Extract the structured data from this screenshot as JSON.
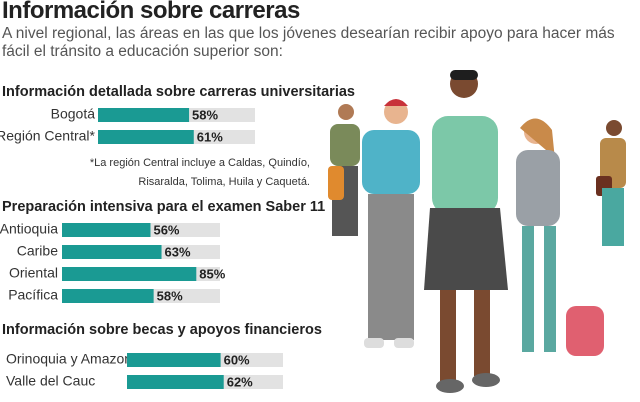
{
  "title": "Información sobre carreras",
  "subtitle": "A nivel regional, las áreas en las que los jóvenes desearían recibir apoyo para hacer más fácil el tránsito a educación superior son:",
  "chart_data": [
    {
      "type": "bar",
      "orientation": "horizontal",
      "title": "Información detallada sobre carreras universitarias",
      "categories": [
        "Bogotá",
        "Región Central*"
      ],
      "values": [
        58,
        61
      ],
      "value_labels": [
        "58%",
        "61%"
      ],
      "color": "#1a9a93",
      "track_color": "#e2e2e2",
      "xlim": [
        0,
        100
      ],
      "note": [
        "*La región Central incluye a Caldas, Quindío,",
        "Risaralda, Tolima, Huila y Caquetá."
      ]
    },
    {
      "type": "bar",
      "orientation": "horizontal",
      "title": "Preparación intensiva para el examen Saber 11",
      "categories": [
        "Antioquia",
        "Caribe",
        "Oriental",
        "Pacífica"
      ],
      "values": [
        56,
        63,
        85,
        58
      ],
      "value_labels": [
        "56%",
        "63%",
        "85%",
        "58%"
      ],
      "color": "#1a9a93",
      "track_color": "#e2e2e2",
      "xlim": [
        0,
        100
      ]
    },
    {
      "type": "bar",
      "orientation": "horizontal",
      "title": "Información sobre becas y apoyos financieros",
      "categories": [
        "Orinoquia y Amazoni",
        "Valle del Cauc"
      ],
      "values": [
        60,
        62
      ],
      "value_labels": [
        "60%",
        "62%"
      ],
      "color": "#1a9a93",
      "track_color": "#e2e2e2",
      "xlim": [
        0,
        100
      ]
    }
  ]
}
